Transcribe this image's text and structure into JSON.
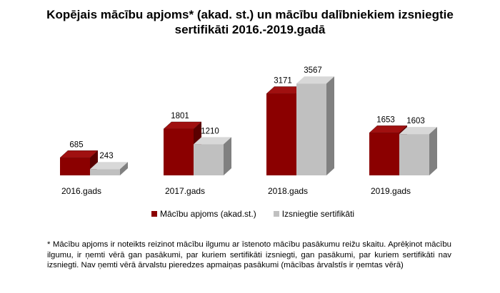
{
  "chart_data": {
    "type": "bar",
    "title": "Kopējais mācību apjoms* (akad. st.) un mācību dalībniekiem izsniegtie\nsertifikāti  2016.-2019.gadā",
    "categories": [
      "2016.gads",
      "2017.gads",
      "2018.gads",
      "2019.gads"
    ],
    "series": [
      {
        "name": "Mācību apjoms (akad.st.)",
        "values": [
          685,
          1801,
          3171,
          1653
        ],
        "color": "#8b0000"
      },
      {
        "name": "Izsniegtie sertifikāti",
        "values": [
          243,
          1210,
          3567,
          1603
        ],
        "color": "#c0c0c0"
      }
    ],
    "legend_position": "bottom",
    "grid": false,
    "style": "3d-bar"
  },
  "footnote": "* Mācību apjoms ir noteikts reizinot mācību ilgumu ar īstenoto mācību pasākumu reižu skaitu. Aprēķinot mācību ilgumu, ir ņemti vērā gan pasākumi, par kuriem sertifikāti izsniegti, gan pasākumi, par kuriem sertifikāti nav izsniegti. Nav ņemti vērā ārvalstu pieredzes apmaiņas pasākumi (mācības ārvalstīs ir ņemtas vērā)"
}
